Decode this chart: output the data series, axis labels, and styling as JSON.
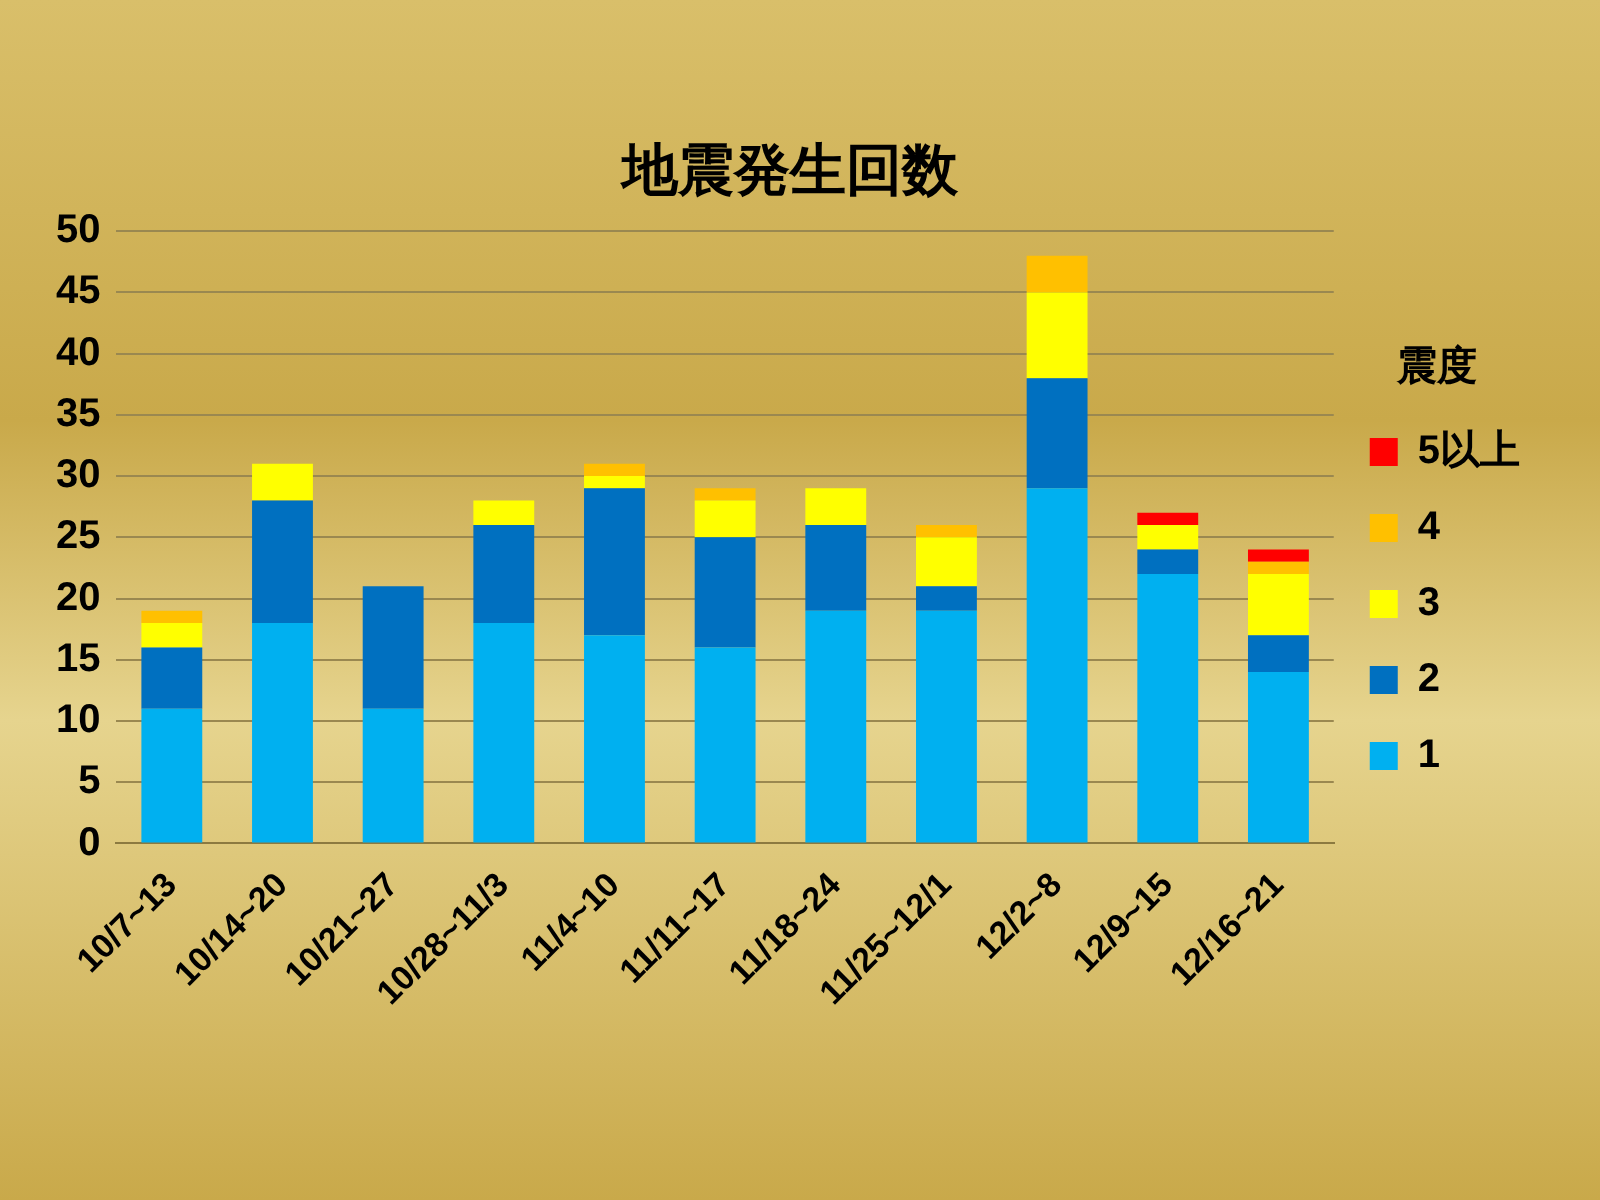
{
  "chart_data": {
    "type": "bar",
    "title": "地震発生回数",
    "legend_title": "震度",
    "stacked": true,
    "grid": "y",
    "legend": "right",
    "categories": [
      "10/7~13",
      "10/14~20",
      "10/21~27",
      "10/28~11/3",
      "11/4~10",
      "11/11~17",
      "11/18~24",
      "11/25~12/1",
      "12/2~8",
      "12/9~15",
      "12/16~21"
    ],
    "ylim": [
      0,
      50
    ],
    "yticks": [
      0,
      5,
      10,
      15,
      20,
      25,
      30,
      35,
      40,
      45,
      50
    ],
    "series": [
      {
        "name": "1",
        "color": "#00b0f0",
        "values": [
          11,
          18,
          11,
          18,
          17,
          16,
          19,
          19,
          29,
          22,
          14
        ]
      },
      {
        "name": "2",
        "color": "#0070c0",
        "values": [
          5,
          10,
          10,
          8,
          12,
          9,
          7,
          2,
          9,
          2,
          3
        ]
      },
      {
        "name": "3",
        "color": "#ffff00",
        "values": [
          2,
          3,
          0,
          2,
          1,
          3,
          3,
          4,
          7,
          2,
          5
        ]
      },
      {
        "name": "4",
        "color": "#ffc000",
        "values": [
          1,
          0,
          0,
          0,
          1,
          1,
          0,
          1,
          3,
          0,
          1
        ]
      },
      {
        "name": "5以上",
        "color": "#ff0000",
        "values": [
          0,
          0,
          0,
          0,
          0,
          0,
          0,
          0,
          0,
          1,
          1
        ]
      }
    ]
  }
}
